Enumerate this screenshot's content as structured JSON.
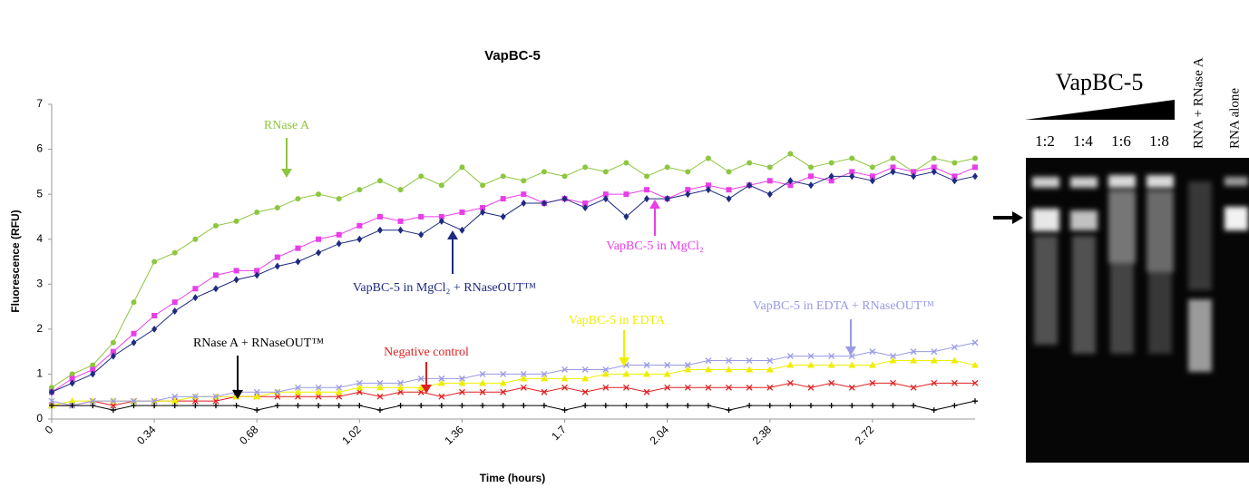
{
  "chart_data": {
    "type": "line",
    "title": "VapBC-5",
    "x_label": "Time (hours)",
    "y_label": "Fluorescence (RFU)",
    "x": [
      0,
      0.068,
      0.136,
      0.204,
      0.272,
      0.34,
      0.408,
      0.476,
      0.544,
      0.612,
      0.68,
      0.748,
      0.816,
      0.884,
      0.952,
      1.02,
      1.088,
      1.156,
      1.224,
      1.292,
      1.36,
      1.428,
      1.496,
      1.564,
      1.632,
      1.7,
      1.768,
      1.836,
      1.904,
      1.972,
      2.04,
      2.108,
      2.176,
      2.244,
      2.312,
      2.38,
      2.448,
      2.516,
      2.584,
      2.652,
      2.72,
      2.788,
      2.856,
      2.924,
      2.992,
      3.06
    ],
    "xlim": [
      0,
      3.06
    ],
    "xticks": [
      0,
      0.34,
      0.68,
      1.02,
      1.36,
      1.7,
      2.04,
      2.38,
      2.72
    ],
    "ylim": [
      0,
      7
    ],
    "yticks": [
      0,
      1,
      2,
      3,
      4,
      5,
      6,
      7
    ],
    "series": [
      {
        "name": "RNase A",
        "color": "#8dc63f",
        "marker": "circle",
        "values": [
          0.7,
          1.0,
          1.2,
          1.7,
          2.6,
          3.5,
          3.7,
          4.0,
          4.3,
          4.4,
          4.6,
          4.7,
          4.9,
          5.0,
          4.9,
          5.1,
          5.3,
          5.1,
          5.4,
          5.2,
          5.6,
          5.2,
          5.4,
          5.3,
          5.5,
          5.4,
          5.6,
          5.5,
          5.7,
          5.4,
          5.6,
          5.5,
          5.8,
          5.5,
          5.7,
          5.6,
          5.9,
          5.6,
          5.7,
          5.8,
          5.6,
          5.8,
          5.5,
          5.8,
          5.7,
          5.8
        ]
      },
      {
        "name": "VapBC-5 in MgCl₂",
        "color": "#e83ee8",
        "marker": "square",
        "values": [
          0.6,
          0.9,
          1.1,
          1.5,
          1.9,
          2.3,
          2.6,
          2.9,
          3.2,
          3.3,
          3.3,
          3.6,
          3.8,
          4.0,
          4.1,
          4.3,
          4.5,
          4.4,
          4.5,
          4.5,
          4.6,
          4.7,
          4.9,
          5.0,
          4.8,
          4.9,
          4.8,
          5.0,
          5.0,
          5.1,
          4.9,
          5.1,
          5.2,
          5.1,
          5.2,
          5.3,
          5.2,
          5.4,
          5.3,
          5.5,
          5.4,
          5.6,
          5.5,
          5.6,
          5.4,
          5.6
        ]
      },
      {
        "name": "VapBC-5 in MgCl₂ + RNaseOUT™",
        "color": "#1f2a80",
        "marker": "diamond",
        "values": [
          0.6,
          0.8,
          1.0,
          1.4,
          1.7,
          2.0,
          2.4,
          2.7,
          2.9,
          3.1,
          3.2,
          3.4,
          3.5,
          3.7,
          3.9,
          4.0,
          4.2,
          4.2,
          4.1,
          4.4,
          4.2,
          4.6,
          4.5,
          4.8,
          4.8,
          4.9,
          4.7,
          4.9,
          4.5,
          4.9,
          4.9,
          5.0,
          5.1,
          4.9,
          5.2,
          5.0,
          5.3,
          5.2,
          5.4,
          5.4,
          5.3,
          5.5,
          5.4,
          5.5,
          5.3,
          5.4
        ]
      },
      {
        "name": "VapBC-5 in EDTA + RNaseOUT™",
        "color": "#9999e6",
        "marker": "x",
        "values": [
          0.4,
          0.3,
          0.4,
          0.4,
          0.4,
          0.4,
          0.5,
          0.5,
          0.5,
          0.6,
          0.6,
          0.6,
          0.7,
          0.7,
          0.7,
          0.8,
          0.8,
          0.8,
          0.9,
          0.9,
          0.9,
          1.0,
          1.0,
          1.0,
          1.0,
          1.1,
          1.1,
          1.1,
          1.2,
          1.2,
          1.2,
          1.2,
          1.3,
          1.3,
          1.3,
          1.3,
          1.4,
          1.4,
          1.4,
          1.4,
          1.5,
          1.4,
          1.5,
          1.5,
          1.6,
          1.7
        ]
      },
      {
        "name": "VapBC-5 in EDTA",
        "color": "#eeee00",
        "marker": "triangle",
        "values": [
          0.3,
          0.4,
          0.4,
          0.4,
          0.4,
          0.4,
          0.4,
          0.5,
          0.5,
          0.5,
          0.5,
          0.6,
          0.6,
          0.6,
          0.6,
          0.7,
          0.7,
          0.7,
          0.7,
          0.8,
          0.8,
          0.8,
          0.8,
          0.9,
          0.9,
          0.9,
          0.9,
          1.0,
          1.0,
          1.0,
          1.0,
          1.1,
          1.1,
          1.1,
          1.1,
          1.1,
          1.2,
          1.2,
          1.2,
          1.2,
          1.2,
          1.3,
          1.3,
          1.3,
          1.3,
          1.2
        ]
      },
      {
        "name": "Negative control",
        "color": "#e02020",
        "marker": "x",
        "values": [
          0.3,
          0.3,
          0.4,
          0.3,
          0.4,
          0.4,
          0.4,
          0.4,
          0.4,
          0.5,
          0.5,
          0.5,
          0.5,
          0.5,
          0.5,
          0.6,
          0.5,
          0.6,
          0.6,
          0.5,
          0.6,
          0.6,
          0.6,
          0.7,
          0.6,
          0.7,
          0.6,
          0.7,
          0.7,
          0.6,
          0.7,
          0.7,
          0.7,
          0.7,
          0.7,
          0.7,
          0.8,
          0.7,
          0.8,
          0.7,
          0.8,
          0.8,
          0.7,
          0.8,
          0.8,
          0.8
        ]
      },
      {
        "name": "RNase A + RNaseOUT™",
        "color": "#000000",
        "marker": "plus",
        "values": [
          0.3,
          0.3,
          0.3,
          0.2,
          0.3,
          0.3,
          0.3,
          0.3,
          0.3,
          0.3,
          0.2,
          0.3,
          0.3,
          0.3,
          0.3,
          0.3,
          0.2,
          0.3,
          0.3,
          0.3,
          0.3,
          0.3,
          0.3,
          0.3,
          0.3,
          0.2,
          0.3,
          0.3,
          0.3,
          0.3,
          0.3,
          0.3,
          0.3,
          0.2,
          0.3,
          0.3,
          0.3,
          0.3,
          0.3,
          0.3,
          0.3,
          0.3,
          0.3,
          0.2,
          0.3,
          0.4
        ]
      }
    ]
  },
  "gel": {
    "title": "VapBC-5",
    "lanes": [
      "1:2",
      "1:4",
      "1:6",
      "1:8",
      "RNA + RNase A",
      "RNA alone"
    ]
  }
}
